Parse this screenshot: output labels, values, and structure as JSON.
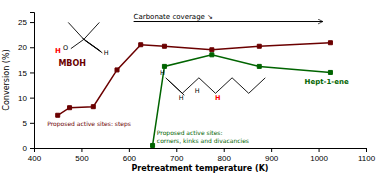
{
  "chart_data": {
    "type": "line",
    "xlabel": "Pretreatment temperature (K)",
    "ylabel": "Conversion (%)",
    "series": [
      {
        "color": "#6B0000",
        "marker": "square",
        "x": [
          450,
          475,
          525,
          575,
          625,
          675,
          775,
          875,
          1025
        ],
        "values": [
          6.5,
          8.0,
          8.2,
          15.5,
          20.5,
          20.2,
          19.5,
          20.2,
          20.9
        ]
      },
      {
        "color": "#006400",
        "marker": "square",
        "x": [
          650,
          675,
          775,
          875,
          1025
        ],
        "values": [
          0.5,
          16.2,
          18.5,
          16.2,
          15.0
        ]
      }
    ],
    "xlim": [
      400,
      1100
    ],
    "ylim": [
      0,
      27
    ],
    "xticks": [
      400,
      500,
      600,
      700,
      800,
      900,
      1000,
      1100
    ],
    "yticks": [
      0,
      5,
      10,
      15,
      20,
      25
    ],
    "grid": false,
    "annotations": [
      {
        "text": "Carbonate coverage ↘"
      },
      {
        "text": "MBOH",
        "color": "#6B0000"
      },
      {
        "text": "Hept-1-ene",
        "color": "#006400"
      },
      {
        "text": "Proposed active sites: steps",
        "color": "#6B0000"
      },
      {
        "text": "Proposed active sites:\ncorners, kinks and divacancies",
        "color": "#006400"
      },
      {
        "text": "H",
        "color": "red"
      },
      {
        "text": "O"
      },
      {
        "text": "H"
      },
      {
        "text": "H"
      },
      {
        "text": "H"
      },
      {
        "text": "H"
      },
      {
        "text": "H",
        "color": "red"
      }
    ]
  }
}
